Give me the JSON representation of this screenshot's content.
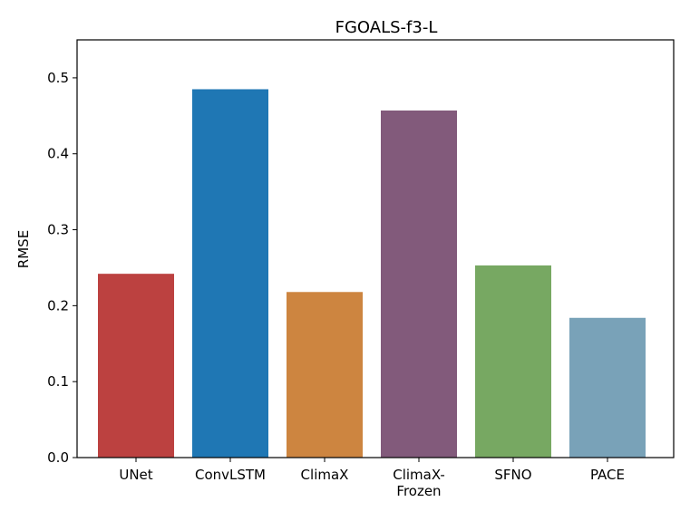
{
  "chart_data": {
    "type": "bar",
    "title": "FGOALS-f3-L",
    "xlabel": "",
    "ylabel": "RMSE",
    "categories": [
      [
        "UNet"
      ],
      [
        "ConvLSTM"
      ],
      [
        "ClimaX"
      ],
      [
        "ClimaX-",
        "Frozen"
      ],
      [
        "SFNO"
      ],
      [
        "PACE"
      ]
    ],
    "values": [
      0.242,
      0.485,
      0.218,
      0.457,
      0.253,
      0.184
    ],
    "colors": [
      "#bc4140",
      "#1f77b4",
      "#cd8540",
      "#825a7b",
      "#77a862",
      "#79a2b8"
    ],
    "ylim": [
      0,
      0.55
    ],
    "yticks": [
      0.0,
      0.1,
      0.2,
      0.3,
      0.4,
      0.5
    ],
    "ytick_labels": [
      "0.0",
      "0.1",
      "0.2",
      "0.3",
      "0.4",
      "0.5"
    ],
    "grid": false,
    "legend": "none"
  }
}
